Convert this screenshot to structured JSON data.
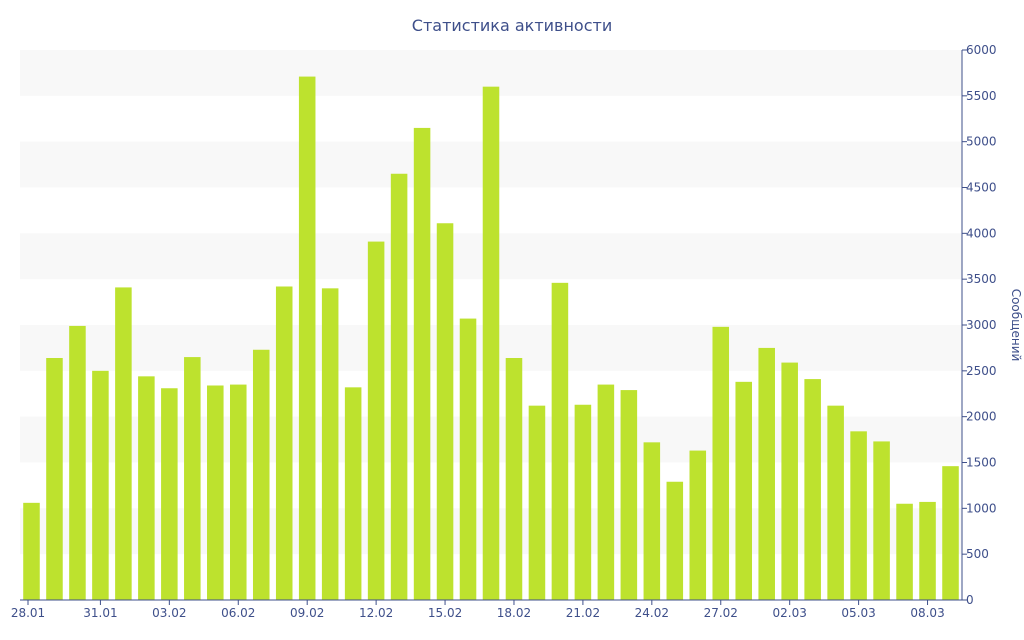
{
  "chart_data": {
    "type": "bar",
    "title": "Статистика активности",
    "ylabel": "Сообщений",
    "xlabel": "",
    "ylim": [
      0,
      6000
    ],
    "yticks": [
      0,
      500,
      1000,
      1500,
      2000,
      2500,
      3000,
      3500,
      4000,
      4500,
      5000,
      5500,
      6000
    ],
    "y_axis_side": "right",
    "grid": "alternating horizontal bands",
    "legend": "none",
    "bar_color": "#bde22e",
    "band_color": "#f8f8f8",
    "text_color": "#3e4f8a",
    "axis_color": "#3e4f8a",
    "x_tick_labels": [
      {
        "index": 0,
        "label": "28.01"
      },
      {
        "index": 3,
        "label": "31.01"
      },
      {
        "index": 6,
        "label": "03.02"
      },
      {
        "index": 9,
        "label": "06.02"
      },
      {
        "index": 12,
        "label": "09.02"
      },
      {
        "index": 15,
        "label": "12.02"
      },
      {
        "index": 18,
        "label": "15.02"
      },
      {
        "index": 21,
        "label": "18.02"
      },
      {
        "index": 24,
        "label": "21.02"
      },
      {
        "index": 27,
        "label": "24.02"
      },
      {
        "index": 30,
        "label": "27.02"
      },
      {
        "index": 33,
        "label": "02.03"
      },
      {
        "index": 36,
        "label": "05.03"
      },
      {
        "index": 39,
        "label": "08.03"
      }
    ],
    "categories": [
      "28.01",
      "29.01",
      "30.01",
      "31.01",
      "01.02",
      "02.02",
      "03.02",
      "04.02",
      "05.02",
      "06.02",
      "07.02",
      "08.02",
      "09.02",
      "10.02",
      "11.02",
      "12.02",
      "13.02",
      "14.02",
      "15.02",
      "16.02",
      "17.02",
      "18.02",
      "19.02",
      "20.02",
      "21.02",
      "22.02",
      "23.02",
      "24.02",
      "25.02",
      "26.02",
      "27.02",
      "28.02",
      "01.03",
      "02.03",
      "03.03",
      "04.03",
      "05.03",
      "06.03",
      "07.03",
      "08.03",
      "09.03"
    ],
    "values": [
      1060,
      2640,
      2990,
      2500,
      3410,
      2440,
      2310,
      2650,
      2340,
      2350,
      2730,
      3420,
      5710,
      3400,
      2320,
      3910,
      4650,
      5150,
      4110,
      3070,
      5600,
      2640,
      2120,
      3460,
      2130,
      2350,
      2290,
      1720,
      1290,
      1630,
      2980,
      2380,
      2750,
      2590,
      2410,
      2120,
      1840,
      1730,
      1050,
      1070,
      1460
    ]
  }
}
